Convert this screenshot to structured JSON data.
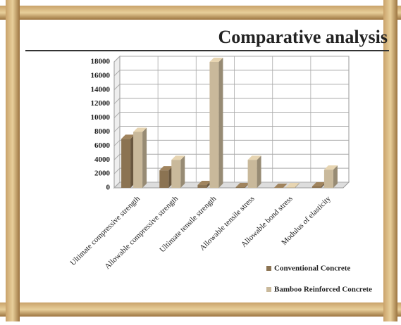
{
  "chart_data": {
    "type": "bar3d",
    "title": "Comparative analysis",
    "categories": [
      "Ultimate compressive strength",
      "Allowable compressive strength",
      "Ultimate tensile strength",
      "Allowable tensile stress",
      "Allowable bond stress",
      "Modulus of elasticity"
    ],
    "series": [
      {
        "name": "Conventional Concrete",
        "color": "#8b7352",
        "values": [
          7000,
          2500,
          400,
          100,
          0,
          200
        ]
      },
      {
        "name": "Bamboo Reinforced Concrete",
        "color": "#c9b99b",
        "values": [
          8000,
          4000,
          18000,
          4000,
          100,
          2600
        ]
      }
    ],
    "ylim": [
      0,
      18000
    ],
    "yticks": [
      0,
      2000,
      4000,
      6000,
      8000,
      10000,
      12000,
      14000,
      16000,
      18000
    ],
    "grid": true
  }
}
